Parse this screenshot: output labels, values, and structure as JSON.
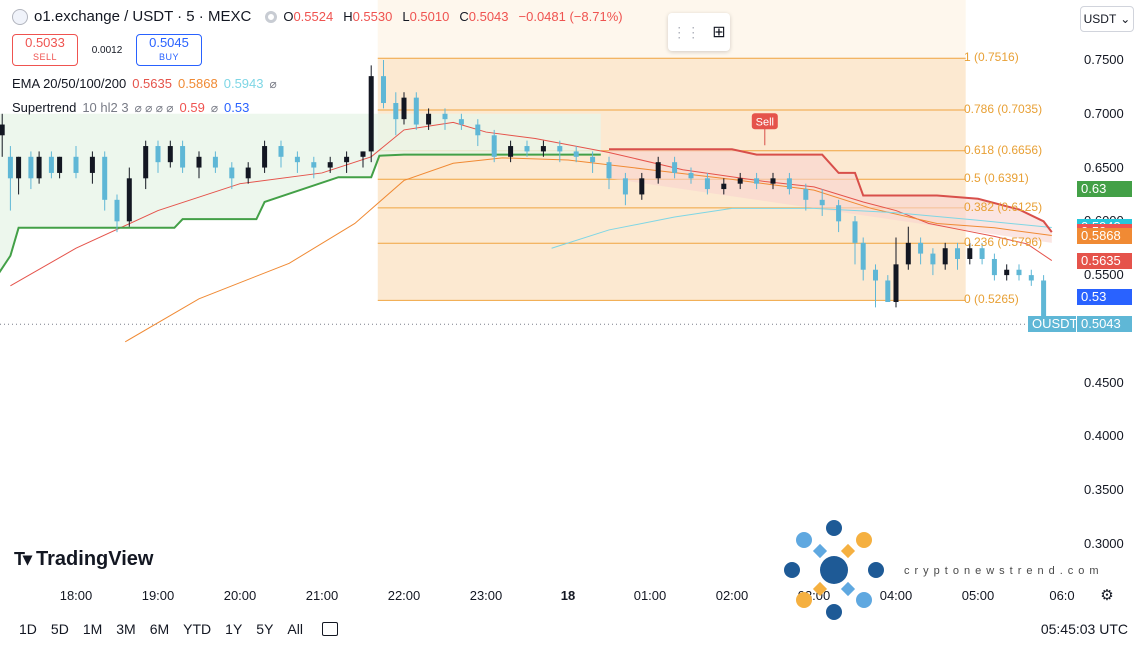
{
  "header": {
    "symbol": "o1.exchange / USDT · 5 · MEXC",
    "ohlc": [
      {
        "k": "O",
        "v": "0.5524"
      },
      {
        "k": "H",
        "v": "0.5530"
      },
      {
        "k": "L",
        "v": "0.5010"
      },
      {
        "k": "C",
        "v": "0.5043"
      }
    ],
    "change": "−0.0481 (−8.71%)"
  },
  "trade": {
    "sell_price": "0.5033",
    "sell_label": "SELL",
    "spread": "0.0012",
    "buy_price": "0.5045",
    "buy_label": "BUY"
  },
  "indicators": {
    "ema": {
      "name": "EMA 20/50/100/200",
      "v1": "0.5635",
      "v2": "0.5868",
      "v3": "0.5943",
      "eye": "⌀"
    },
    "supertrend": {
      "name": "Supertrend",
      "params": "10 hl2 3",
      "v1": "0.59",
      "v2": "0.53",
      "eyes": "⌀ ⌀ ⌀ ⌀"
    }
  },
  "currency_select": "USDT",
  "price_axis": [
    "0.7500",
    "0.7000",
    "0.6500",
    "0.6000",
    "0.5500",
    "0.4500",
    "0.4000",
    "0.3500",
    "0.3000"
  ],
  "price_badges": [
    {
      "text": "0.63",
      "color": "#43a047",
      "price": 0.63
    },
    {
      "text": "0.5943",
      "color": "#26c6da",
      "price": 0.5943
    },
    {
      "text": "0.59",
      "color": "#ef5350",
      "price": 0.59
    },
    {
      "text": "0.5868",
      "color": "#f08a34",
      "price": 0.5868
    },
    {
      "text": "0.5635",
      "color": "#e5534b",
      "price": 0.5635
    },
    {
      "text": "0.53",
      "color": "#2962ff",
      "price": 0.53
    }
  ],
  "last_price": {
    "symbol": "OUSDT",
    "value": "0.5043",
    "color": "#5fb7d6"
  },
  "time_axis": [
    "18:00",
    "19:00",
    "20:00",
    "21:00",
    "22:00",
    "23:00",
    "18",
    "01:00",
    "02:00",
    "03:00",
    "04:00",
    "05:00",
    "06:0"
  ],
  "fib_levels": [
    {
      "label": "1 (0.7516)",
      "price": 0.7516
    },
    {
      "label": "0.786 (0.7035)",
      "price": 0.7035
    },
    {
      "label": "0.618 (0.6656)",
      "price": 0.6656
    },
    {
      "label": "0.5 (0.6391)",
      "price": 0.6391
    },
    {
      "label": "0.382 (0.6125)",
      "price": 0.6125
    },
    {
      "label": "0.236 (0.5796)",
      "price": 0.5796
    },
    {
      "label": "0 (0.5265)",
      "price": 0.5265
    }
  ],
  "sell_signal": "Sell",
  "ranges": [
    "1D",
    "5D",
    "1M",
    "3M",
    "6M",
    "YTD",
    "1Y",
    "5Y",
    "All"
  ],
  "clock": "05:45:03 UTC",
  "brand": "TradingView",
  "watermark": "cryptonewstrend.com",
  "colors": {
    "up": "#131722",
    "down": "#5fb7d6",
    "fib": "#f5a623",
    "supertrend_up": "#43a047",
    "supertrend_down": "#d84f4a"
  },
  "chart_data": {
    "type": "candlestick",
    "ylim": [
      0.27,
      0.775
    ],
    "x": [
      "18:00",
      "19:00",
      "20:00",
      "21:00",
      "22:00",
      "23:00",
      "18",
      "01:00",
      "02:00",
      "03:00",
      "04:00",
      "05:00"
    ],
    "series": [
      {
        "name": "EMA 20",
        "color": "#e5534b",
        "points": [
          [
            17.2,
            0.54
          ],
          [
            18.0,
            0.575
          ],
          [
            19.0,
            0.61
          ],
          [
            20.0,
            0.635
          ],
          [
            21.0,
            0.645
          ],
          [
            21.6,
            0.66
          ],
          [
            22.0,
            0.685
          ],
          [
            22.6,
            0.692
          ],
          [
            23.0,
            0.683
          ],
          [
            23.6,
            0.677
          ],
          [
            24.5,
            0.664
          ],
          [
            25.4,
            0.648
          ],
          [
            26.4,
            0.637
          ],
          [
            27.0,
            0.632
          ],
          [
            27.6,
            0.618
          ],
          [
            28.0,
            0.61
          ],
          [
            28.4,
            0.598
          ],
          [
            28.8,
            0.592
          ],
          [
            29.2,
            0.586
          ],
          [
            29.6,
            0.579
          ],
          [
            29.9,
            0.5635
          ]
        ]
      },
      {
        "name": "EMA 50",
        "color": "#f08a34",
        "points": [
          [
            18.6,
            0.488
          ],
          [
            19.5,
            0.528
          ],
          [
            20.6,
            0.561
          ],
          [
            21.4,
            0.598
          ],
          [
            22.0,
            0.638
          ],
          [
            22.6,
            0.654
          ],
          [
            23.2,
            0.659
          ],
          [
            24.0,
            0.657
          ],
          [
            25.0,
            0.648
          ],
          [
            26.0,
            0.639
          ],
          [
            27.0,
            0.629
          ],
          [
            27.7,
            0.612
          ],
          [
            28.5,
            0.598
          ],
          [
            29.2,
            0.594
          ],
          [
            29.9,
            0.5868
          ]
        ]
      },
      {
        "name": "EMA 100",
        "color": "#7ed6e5",
        "points": [
          [
            23.8,
            0.575
          ],
          [
            24.5,
            0.592
          ],
          [
            25.3,
            0.604
          ],
          [
            26.0,
            0.612
          ],
          [
            27.0,
            0.612
          ],
          [
            28.0,
            0.608
          ],
          [
            29.0,
            0.601
          ],
          [
            29.9,
            0.5943
          ]
        ]
      },
      {
        "name": "Supertrend up",
        "color": "#43a047",
        "points": [
          [
            17.0,
            0.545
          ],
          [
            17.2,
            0.568
          ],
          [
            17.3,
            0.594
          ],
          [
            18.2,
            0.594
          ],
          [
            19.2,
            0.594
          ],
          [
            19.3,
            0.602
          ],
          [
            20.2,
            0.602
          ],
          [
            20.3,
            0.618
          ],
          [
            21.2,
            0.641
          ],
          [
            21.6,
            0.641
          ],
          [
            21.7,
            0.661
          ],
          [
            22.0,
            0.662
          ],
          [
            23.0,
            0.662
          ],
          [
            24.2,
            0.662
          ],
          [
            24.4,
            0.662
          ]
        ]
      },
      {
        "name": "Supertrend down",
        "color": "#d84f4a",
        "points": [
          [
            24.5,
            0.667
          ],
          [
            26.0,
            0.667
          ],
          [
            26.3,
            0.662
          ],
          [
            27.1,
            0.662
          ],
          [
            27.3,
            0.645
          ],
          [
            27.5,
            0.645
          ],
          [
            27.6,
            0.624
          ],
          [
            28.2,
            0.624
          ],
          [
            28.5,
            0.624
          ],
          [
            29.0,
            0.621
          ],
          [
            29.5,
            0.611
          ],
          [
            29.8,
            0.6
          ],
          [
            29.9,
            0.59
          ]
        ]
      }
    ],
    "candles": [
      [
        17.0,
        0.65,
        0.7,
        0.7,
        0.64
      ],
      [
        17.1,
        0.68,
        0.69,
        0.7,
        0.66
      ],
      [
        17.2,
        0.66,
        0.64,
        0.67,
        0.61
      ],
      [
        17.3,
        0.64,
        0.66,
        0.66,
        0.625
      ],
      [
        17.45,
        0.66,
        0.64,
        0.665,
        0.63
      ],
      [
        17.55,
        0.64,
        0.66,
        0.665,
        0.635
      ],
      [
        17.7,
        0.66,
        0.645,
        0.665,
        0.64
      ],
      [
        17.8,
        0.645,
        0.66,
        0.66,
        0.64
      ],
      [
        18.0,
        0.66,
        0.645,
        0.67,
        0.64
      ],
      [
        18.2,
        0.645,
        0.66,
        0.665,
        0.635
      ],
      [
        18.35,
        0.66,
        0.62,
        0.665,
        0.61
      ],
      [
        18.5,
        0.62,
        0.6,
        0.625,
        0.59
      ],
      [
        18.65,
        0.6,
        0.64,
        0.65,
        0.595
      ],
      [
        18.85,
        0.64,
        0.67,
        0.675,
        0.63
      ],
      [
        19.0,
        0.67,
        0.655,
        0.675,
        0.645
      ],
      [
        19.15,
        0.655,
        0.67,
        0.675,
        0.65
      ],
      [
        19.3,
        0.67,
        0.65,
        0.675,
        0.645
      ],
      [
        19.5,
        0.65,
        0.66,
        0.665,
        0.64
      ],
      [
        19.7,
        0.66,
        0.65,
        0.665,
        0.645
      ],
      [
        19.9,
        0.65,
        0.64,
        0.655,
        0.63
      ],
      [
        20.1,
        0.64,
        0.65,
        0.655,
        0.635
      ],
      [
        20.3,
        0.65,
        0.67,
        0.675,
        0.645
      ],
      [
        20.5,
        0.67,
        0.66,
        0.675,
        0.65
      ],
      [
        20.7,
        0.66,
        0.655,
        0.665,
        0.645
      ],
      [
        20.9,
        0.655,
        0.65,
        0.66,
        0.64
      ],
      [
        21.1,
        0.65,
        0.655,
        0.66,
        0.645
      ],
      [
        21.3,
        0.655,
        0.66,
        0.665,
        0.645
      ],
      [
        21.5,
        0.66,
        0.665,
        0.665,
        0.65
      ],
      [
        21.6,
        0.665,
        0.735,
        0.745,
        0.655
      ],
      [
        21.75,
        0.735,
        0.71,
        0.75,
        0.705
      ],
      [
        21.9,
        0.71,
        0.695,
        0.72,
        0.68
      ],
      [
        22.0,
        0.695,
        0.715,
        0.72,
        0.69
      ],
      [
        22.15,
        0.715,
        0.69,
        0.72,
        0.685
      ],
      [
        22.3,
        0.69,
        0.7,
        0.705,
        0.685
      ],
      [
        22.5,
        0.7,
        0.695,
        0.705,
        0.685
      ],
      [
        22.7,
        0.695,
        0.69,
        0.7,
        0.685
      ],
      [
        22.9,
        0.69,
        0.68,
        0.695,
        0.67
      ],
      [
        23.1,
        0.68,
        0.66,
        0.685,
        0.655
      ],
      [
        23.3,
        0.66,
        0.67,
        0.675,
        0.655
      ],
      [
        23.5,
        0.67,
        0.665,
        0.675,
        0.66
      ],
      [
        23.7,
        0.665,
        0.67,
        0.675,
        0.66
      ],
      [
        23.9,
        0.67,
        0.665,
        0.675,
        0.655
      ],
      [
        24.1,
        0.665,
        0.66,
        0.67,
        0.655
      ],
      [
        24.3,
        0.66,
        0.655,
        0.665,
        0.645
      ],
      [
        24.5,
        0.655,
        0.64,
        0.66,
        0.63
      ],
      [
        24.7,
        0.64,
        0.625,
        0.645,
        0.615
      ],
      [
        24.9,
        0.625,
        0.64,
        0.645,
        0.62
      ],
      [
        25.1,
        0.64,
        0.655,
        0.66,
        0.635
      ],
      [
        25.3,
        0.655,
        0.645,
        0.66,
        0.64
      ],
      [
        25.5,
        0.645,
        0.64,
        0.65,
        0.635
      ],
      [
        25.7,
        0.64,
        0.63,
        0.645,
        0.625
      ],
      [
        25.9,
        0.63,
        0.635,
        0.64,
        0.625
      ],
      [
        26.1,
        0.635,
        0.64,
        0.645,
        0.63
      ],
      [
        26.3,
        0.64,
        0.635,
        0.645,
        0.63
      ],
      [
        26.5,
        0.635,
        0.64,
        0.645,
        0.63
      ],
      [
        26.7,
        0.64,
        0.63,
        0.645,
        0.625
      ],
      [
        26.9,
        0.63,
        0.62,
        0.635,
        0.61
      ],
      [
        27.1,
        0.62,
        0.615,
        0.63,
        0.605
      ],
      [
        27.3,
        0.615,
        0.6,
        0.62,
        0.59
      ],
      [
        27.5,
        0.6,
        0.58,
        0.605,
        0.56
      ],
      [
        27.6,
        0.58,
        0.555,
        0.585,
        0.545
      ],
      [
        27.75,
        0.555,
        0.545,
        0.56,
        0.52
      ],
      [
        27.9,
        0.545,
        0.525,
        0.55,
        0.525
      ],
      [
        28.0,
        0.525,
        0.56,
        0.585,
        0.52
      ],
      [
        28.15,
        0.56,
        0.58,
        0.595,
        0.555
      ],
      [
        28.3,
        0.58,
        0.57,
        0.585,
        0.56
      ],
      [
        28.45,
        0.57,
        0.56,
        0.575,
        0.55
      ],
      [
        28.6,
        0.56,
        0.575,
        0.58,
        0.555
      ],
      [
        28.75,
        0.575,
        0.565,
        0.58,
        0.555
      ],
      [
        28.9,
        0.565,
        0.575,
        0.58,
        0.56
      ],
      [
        29.05,
        0.575,
        0.565,
        0.58,
        0.56
      ],
      [
        29.2,
        0.565,
        0.55,
        0.57,
        0.545
      ],
      [
        29.35,
        0.55,
        0.555,
        0.56,
        0.545
      ],
      [
        29.5,
        0.555,
        0.55,
        0.56,
        0.545
      ],
      [
        29.65,
        0.55,
        0.545,
        0.555,
        0.54
      ],
      [
        29.8,
        0.545,
        0.5043,
        0.55,
        0.501
      ]
    ]
  }
}
